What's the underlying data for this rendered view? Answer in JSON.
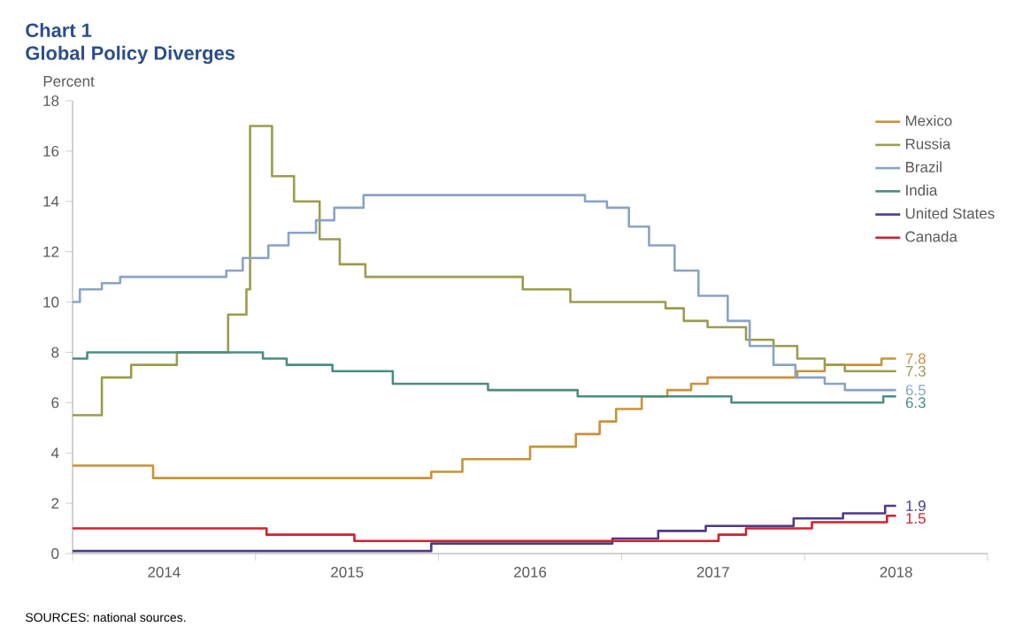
{
  "chart_data": {
    "type": "step",
    "title": "Chart 1",
    "subtitle": "Global Policy Diverges",
    "ylabel": "Percent",
    "xlim": [
      2014,
      2019
    ],
    "ylim": [
      0,
      18
    ],
    "xticks": [
      {
        "value": 2014,
        "label": null
      },
      {
        "value": 2014.5,
        "label": "2014"
      },
      {
        "value": 2015,
        "label": null
      },
      {
        "value": 2015.5,
        "label": "2015"
      },
      {
        "value": 2016,
        "label": null
      },
      {
        "value": 2016.5,
        "label": "2016"
      },
      {
        "value": 2017,
        "label": null
      },
      {
        "value": 2017.5,
        "label": "2017"
      },
      {
        "value": 2018,
        "label": null
      },
      {
        "value": 2018.5,
        "label": "2018"
      },
      {
        "value": 2019,
        "label": null
      }
    ],
    "yticks": [
      0,
      2,
      4,
      6,
      8,
      10,
      12,
      14,
      16,
      18
    ],
    "grid": false,
    "legend": "top right",
    "line_style": "solid",
    "marker": "none",
    "series": [
      {
        "name": "Mexico",
        "color": "#c8923a",
        "x": [
          2014,
          2014.44,
          2015.96,
          2016.13,
          2016.5,
          2016.75,
          2016.88,
          2016.97,
          2017.11,
          2017.25,
          2017.38,
          2017.47,
          2017.96,
          2018.11,
          2018.42,
          2018.5
        ],
        "values": [
          3.5,
          3.0,
          3.25,
          3.75,
          4.25,
          4.75,
          5.25,
          5.75,
          6.25,
          6.5,
          6.75,
          7.0,
          7.25,
          7.5,
          7.75,
          7.75
        ],
        "value_labels": [
          null,
          null,
          null,
          null,
          null,
          null,
          null,
          null,
          null,
          null,
          null,
          null,
          null,
          null,
          null,
          "7.8"
        ]
      },
      {
        "name": "Russia",
        "color": "#9b9c4e",
        "x": [
          2014,
          2014.16,
          2014.32,
          2014.57,
          2014.85,
          2014.95,
          2014.97,
          2015.09,
          2015.21,
          2015.35,
          2015.46,
          2015.6,
          2016.46,
          2016.72,
          2017.24,
          2017.34,
          2017.47,
          2017.68,
          2017.83,
          2017.96,
          2018.11,
          2018.22,
          2018.5
        ],
        "values": [
          5.5,
          7.0,
          7.5,
          8.0,
          9.5,
          10.5,
          17.0,
          15.0,
          14.0,
          12.5,
          11.5,
          11.0,
          10.5,
          10.0,
          9.75,
          9.25,
          9.0,
          8.5,
          8.25,
          7.75,
          7.5,
          7.25,
          7.25
        ],
        "value_labels": [
          null,
          null,
          null,
          null,
          null,
          null,
          null,
          null,
          null,
          null,
          null,
          null,
          null,
          null,
          null,
          null,
          null,
          null,
          null,
          null,
          null,
          null,
          "7.3"
        ]
      },
      {
        "name": "Brazil",
        "color": "#8aa3c4",
        "x": [
          2014,
          2014.04,
          2014.16,
          2014.26,
          2014.84,
          2014.93,
          2015.07,
          2015.18,
          2015.33,
          2015.43,
          2015.59,
          2016.8,
          2016.92,
          2017.04,
          2017.15,
          2017.29,
          2017.42,
          2017.58,
          2017.7,
          2017.83,
          2017.95,
          2018.11,
          2018.22,
          2018.5
        ],
        "values": [
          10.0,
          10.5,
          10.75,
          11.0,
          11.25,
          11.75,
          12.25,
          12.75,
          13.25,
          13.75,
          14.25,
          14.0,
          13.75,
          13.0,
          12.25,
          11.25,
          10.25,
          9.25,
          8.25,
          7.5,
          7.0,
          6.75,
          6.5,
          6.5
        ],
        "value_labels": [
          null,
          null,
          null,
          null,
          null,
          null,
          null,
          null,
          null,
          null,
          null,
          null,
          null,
          null,
          null,
          null,
          null,
          null,
          null,
          null,
          null,
          null,
          null,
          "6.5"
        ]
      },
      {
        "name": "India",
        "color": "#4b8c82",
        "x": [
          2014,
          2014.08,
          2015.04,
          2015.17,
          2015.42,
          2015.75,
          2016.27,
          2016.76,
          2017.6,
          2018.43,
          2018.5
        ],
        "values": [
          7.75,
          8.0,
          7.75,
          7.5,
          7.25,
          6.75,
          6.5,
          6.25,
          6.0,
          6.25,
          6.25
        ],
        "value_labels": [
          null,
          null,
          null,
          null,
          null,
          null,
          null,
          null,
          null,
          null,
          "6.3"
        ]
      },
      {
        "name": "United States",
        "color": "#4c3a87",
        "x": [
          2014,
          2015.96,
          2016.95,
          2017.2,
          2017.46,
          2017.94,
          2018.21,
          2018.44,
          2018.5
        ],
        "values": [
          0.1,
          0.4,
          0.6,
          0.9,
          1.1,
          1.4,
          1.6,
          1.9,
          1.9
        ],
        "value_labels": [
          null,
          null,
          null,
          null,
          null,
          null,
          null,
          null,
          "1.9"
        ]
      },
      {
        "name": "Canada",
        "color": "#d0202e",
        "x": [
          2014,
          2015.06,
          2015.54,
          2017.53,
          2017.68,
          2018.04,
          2018.45,
          2018.5
        ],
        "values": [
          1.0,
          0.75,
          0.5,
          0.75,
          1.0,
          1.25,
          1.5,
          1.5
        ],
        "value_labels": [
          null,
          null,
          null,
          null,
          null,
          null,
          null,
          "1.5"
        ]
      }
    ],
    "annotations": [
      "SOURCES: national sources."
    ]
  }
}
